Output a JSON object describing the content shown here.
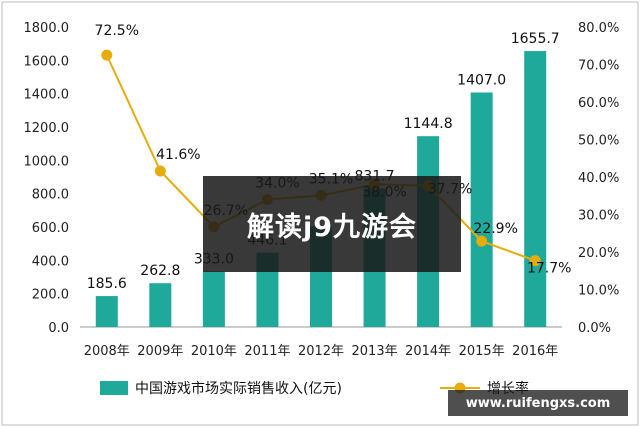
{
  "chart_data": {
    "type": "bar",
    "categories": [
      "2008年",
      "2009年",
      "2010年",
      "2011年",
      "2012年",
      "2013年",
      "2014年",
      "2015年",
      "2016年"
    ],
    "series": [
      {
        "name": "中国游戏市场实际销售收入(亿元)",
        "type": "bar",
        "axis": "left",
        "color": "#1fa99a",
        "values": [
          185.6,
          262.8,
          333.0,
          446.1,
          602.8,
          831.7,
          1144.8,
          1407.0,
          1655.7
        ],
        "labels": [
          "185.6",
          "262.8",
          "333.0",
          "446.1",
          "",
          "831.7",
          "1144.8",
          "1407.0",
          "1655.7"
        ]
      },
      {
        "name": "增长率",
        "type": "line",
        "axis": "right",
        "color": "#e6ac0b",
        "values": [
          72.5,
          41.6,
          26.7,
          34.0,
          35.1,
          38.0,
          37.7,
          22.9,
          17.7
        ],
        "labels": [
          "72.5%",
          "41.6%",
          "26.7%",
          "34.0%",
          "35.1%",
          "38.0%",
          "37.7%",
          "22.9%",
          "17.7%"
        ]
      }
    ],
    "yleft": {
      "min": 0,
      "max": 1800,
      "step": 200,
      "ticks": [
        "0.0",
        "200.0",
        "400.0",
        "600.0",
        "800.0",
        "1000.0",
        "1200.0",
        "1400.0",
        "1600.0",
        "1800.0"
      ]
    },
    "yright": {
      "min": 0,
      "max": 80,
      "step": 10,
      "ticks": [
        "0.0%",
        "10.0%",
        "20.0%",
        "30.0%",
        "40.0%",
        "50.0%",
        "60.0%",
        "70.0%",
        "80.0%"
      ]
    },
    "legend_position": "bottom",
    "grid": false
  },
  "banner": {
    "text": "解读j9九游会"
  },
  "watermark": {
    "text": "www.ruifengxs.com"
  }
}
